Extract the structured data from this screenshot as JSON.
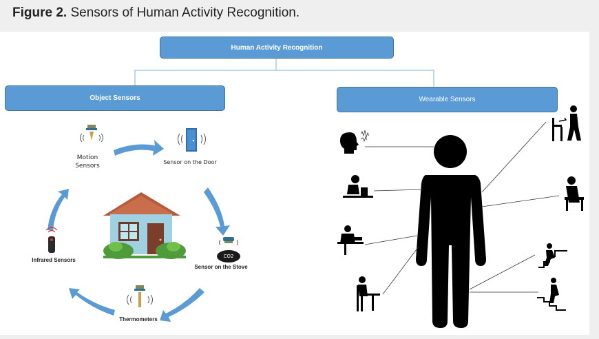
{
  "caption": {
    "prefix": "Figure 2.",
    "text": "Sensors of Human Activity Recognition."
  },
  "root": "Human Activity Recognition",
  "object_sensors": {
    "title": "Object Sensors",
    "items": {
      "motion_line1": "Motion",
      "motion_line2": "Sensors",
      "door": "Sensor on the Door",
      "stove": "Sensor on the Stove",
      "thermometers": "Thermometers",
      "infrared": "Infrared Sensors"
    },
    "co2": "CO2"
  },
  "wearable_sensors": {
    "title": "Wearable Sensors"
  },
  "colors": {
    "box": "#5b9bd5",
    "box_border": "#41719c",
    "arrow": "#5b9bd5",
    "silhouette": "#000000"
  }
}
